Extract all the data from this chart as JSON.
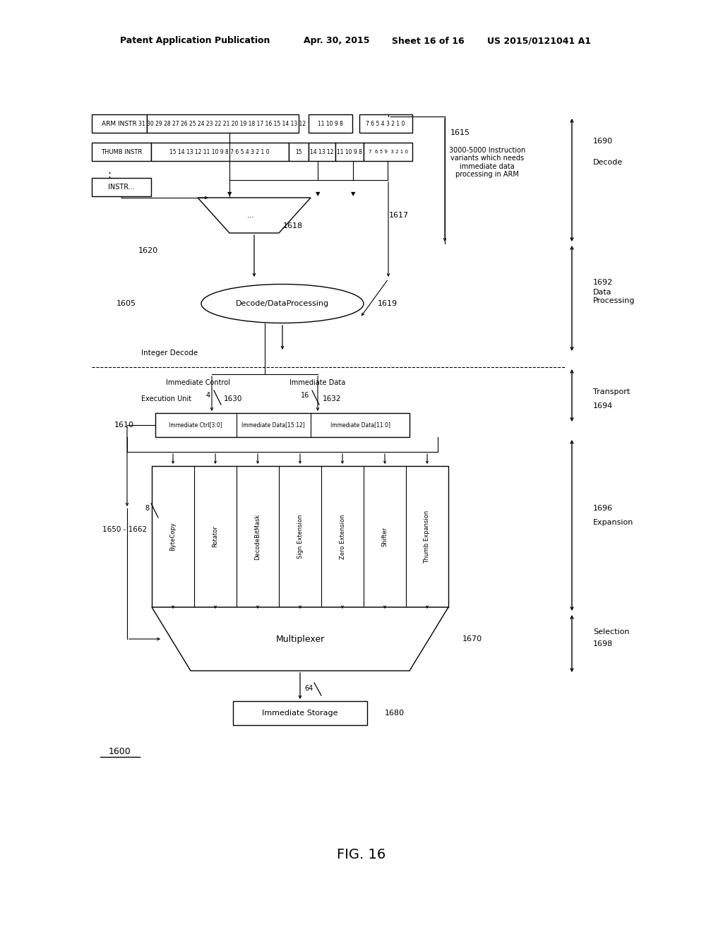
{
  "bg_color": "#ffffff",
  "header_text1": "Patent Application Publication",
  "header_text2": "Apr. 30, 2015",
  "header_text3": "Sheet 16 of 16",
  "header_text4": "US 2015/0121041 A1",
  "fig_label": "FIG. 16",
  "diagram_ref": "1600",
  "arm_instr_label": "ARM INSTR",
  "arm_bits_main": "31 30 29 28 27 26 25 24 23 22 21 20 19 18 17 16 15 14 13 12",
  "arm_bits_mid": "11 10 9 8",
  "arm_bits_low": "7 6 5 4 3 2 1 0",
  "thumb_instr_label": "THUMB INSTR",
  "thumb_bits_main": "15 14 13 12 11 10 9 8 7 6 5 4 3 2 1 0",
  "thumb_bits_mid": "15",
  "thumb_bits_mid2": "14 13 12",
  "thumb_bits_mid3": "11 10 9 8",
  "thumb_bits_low": "7  6 5 9  3 2 1 0",
  "instr_label": "INSTR...",
  "decode_dp_label": "Decode/DataProcessing",
  "integer_decode_label": "Integer Decode",
  "immediate_control_label": "Immediate Control",
  "immediate_data_label": "Immediate Data",
  "execution_unit_label": "Execution Unit",
  "ctrl_bits": "4",
  "data_bits": "16",
  "ctrl_label": "1630",
  "data_label": "1632",
  "imm_ctrl_box": "Immediate Ctrl[3:0]",
  "imm_data1_box": "Immediate Data[15:12]",
  "imm_data2_box": "Immediate Data[11:0]",
  "exp_labels": [
    "ByteCopy",
    "Rotator",
    "DecodeBitMask",
    "Sign Extension",
    "Zero Extension",
    "Shifter",
    "Thumb Expansion"
  ],
  "multiplexer_label": "Multiplexer",
  "imm_storage_label": "Immediate Storage",
  "bits_8": "8",
  "bits_64": "64",
  "label_1615": "1615",
  "label_1617": "1617",
  "label_1618": "1618",
  "label_1619": "1619",
  "label_1620": "1620",
  "label_1605": "1605",
  "label_1610": "1610",
  "label_1650_1662": "1650 - 1662",
  "label_1670": "1670",
  "label_1680": "1680",
  "label_1690": "1690",
  "label_1690_text": "Decode",
  "label_1692": "1692",
  "label_1692_text": "Data\nProcessing",
  "label_1694": "1694",
  "label_1694_text": "Transport",
  "label_1696": "1696",
  "label_1696_text": "Expansion",
  "label_1698": "1698",
  "label_1698_text": "Selection",
  "annotation_3000": "3000-5000 Instruction\nvariants which needs\nimmediate data\nprocessing in ARM"
}
